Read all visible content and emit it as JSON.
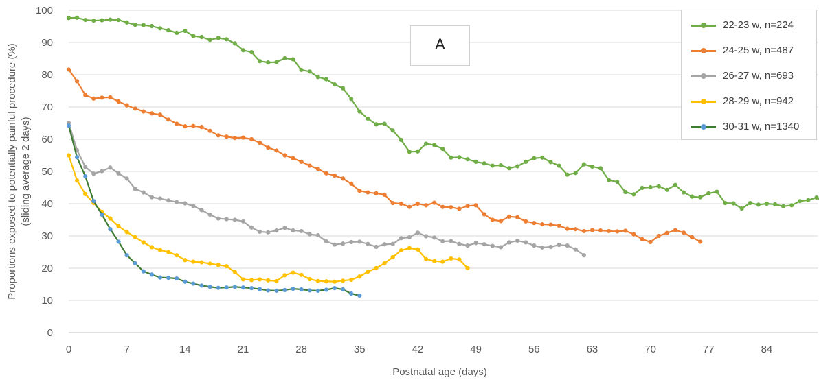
{
  "chart_data": {
    "type": "line",
    "title": "",
    "panel_label": "A",
    "xlabel": "Postnatal age (days)",
    "ylabel_line1": "Proportions exposed to potentially painful procedure (%)",
    "ylabel_line2": "(sliding average 2 days)",
    "xlim": [
      0,
      90
    ],
    "ylim": [
      0,
      100
    ],
    "x_ticks": [
      0,
      7,
      14,
      21,
      28,
      35,
      42,
      49,
      56,
      63,
      70,
      77,
      84
    ],
    "x_tick_labels": [
      "0",
      "7",
      "14",
      "21",
      "28",
      "35",
      "42",
      "49",
      "56",
      "63",
      "70",
      "77",
      "84"
    ],
    "y_ticks": [
      0,
      10,
      20,
      30,
      40,
      50,
      60,
      70,
      80,
      90,
      100
    ],
    "y_tick_labels": [
      "0",
      "10",
      "20",
      "30",
      "40",
      "50",
      "60",
      "70",
      "80",
      "90",
      "100"
    ],
    "grid": "horizontal",
    "legend_position": "top-right",
    "series": [
      {
        "name": "22-23 w, n=224",
        "color": "#70AD47",
        "values": [
          97.6,
          97.7,
          97.0,
          96.8,
          96.9,
          97.1,
          97.0,
          96.2,
          95.5,
          95.4,
          95.1,
          94.4,
          93.8,
          93.0,
          93.6,
          92.0,
          91.7,
          90.8,
          91.4,
          91.0,
          89.7,
          87.6,
          87.0,
          84.2,
          83.8,
          83.9,
          85.1,
          84.8,
          81.5,
          81.0,
          79.3,
          78.6,
          77.0,
          75.8,
          72.5,
          68.6,
          66.4,
          64.6,
          64.8,
          62.7,
          59.8,
          56.1,
          56.2,
          58.6,
          58.2,
          57.0,
          54.3,
          54.4,
          53.8,
          53.0,
          52.5,
          51.8,
          51.9,
          51.0,
          51.6,
          53.0,
          54.1,
          54.3,
          52.9,
          51.8,
          49.0,
          49.5,
          52.2,
          51.5,
          51.0,
          47.3,
          46.8,
          43.6,
          42.9,
          44.9,
          45.1,
          45.4,
          44.3,
          45.8,
          43.5,
          42.2,
          42.0,
          43.2,
          43.7,
          40.2,
          40.1,
          38.5,
          40.2,
          39.7,
          40.0,
          39.8,
          39.2,
          39.5,
          40.8,
          41.1,
          41.9,
          40.4
        ]
      },
      {
        "name": "24-25 w, n=487",
        "color": "#ED7D31",
        "values": [
          81.6,
          78.0,
          73.7,
          72.6,
          72.9,
          73.0,
          71.7,
          70.5,
          69.5,
          68.6,
          68.0,
          67.6,
          66.1,
          64.8,
          64.0,
          64.1,
          63.8,
          62.6,
          61.2,
          60.8,
          60.4,
          60.5,
          60.0,
          58.9,
          57.4,
          56.5,
          55.0,
          54.1,
          53.0,
          51.8,
          50.8,
          49.4,
          48.7,
          47.8,
          46.2,
          44.0,
          43.5,
          43.2,
          42.8,
          40.2,
          40.0,
          39.0,
          40.0,
          39.5,
          40.3,
          39.0,
          38.9,
          38.4,
          39.3,
          39.5,
          36.7,
          35.0,
          34.6,
          36.0,
          35.8,
          34.5,
          34.0,
          33.6,
          33.5,
          33.2,
          32.2,
          32.1,
          31.5,
          31.8,
          31.7,
          31.5,
          31.4,
          31.6,
          30.5,
          29.0,
          28.1,
          30.0,
          30.9,
          31.8,
          31.0,
          29.6,
          28.2
        ]
      },
      {
        "name": "26-27 w, n=693",
        "color": "#A5A5A5",
        "values": [
          65.0,
          56.6,
          51.4,
          49.3,
          50.1,
          51.2,
          49.4,
          47.8,
          44.6,
          43.5,
          42.0,
          41.6,
          41.0,
          40.5,
          40.1,
          39.3,
          38.0,
          36.6,
          35.4,
          35.2,
          35.0,
          34.5,
          32.6,
          31.3,
          31.1,
          31.7,
          32.5,
          31.7,
          31.5,
          30.5,
          30.2,
          28.3,
          27.3,
          27.6,
          28.1,
          28.2,
          27.5,
          26.6,
          27.4,
          27.5,
          29.3,
          29.6,
          31.0,
          29.9,
          29.5,
          28.3,
          28.4,
          27.5,
          27.0,
          27.8,
          27.4,
          26.9,
          26.5,
          28.0,
          28.5,
          28.0,
          27.0,
          26.4,
          26.6,
          27.2,
          27.0,
          25.8,
          24.0
        ]
      },
      {
        "name": "28-29 w, n=942",
        "color": "#FFC000",
        "values": [
          55.0,
          47.2,
          43.0,
          40.2,
          37.5,
          35.4,
          33.0,
          31.2,
          29.6,
          28.0,
          26.5,
          25.6,
          25.0,
          24.0,
          22.5,
          22.0,
          21.8,
          21.4,
          21.0,
          20.6,
          18.8,
          16.5,
          16.3,
          16.5,
          16.2,
          16.0,
          17.8,
          18.6,
          17.9,
          16.6,
          16.0,
          15.9,
          15.8,
          16.1,
          16.4,
          17.4,
          18.9,
          20.0,
          21.5,
          23.4,
          25.5,
          26.2,
          25.8,
          22.8,
          22.2,
          22.0,
          23.0,
          22.7,
          20.0
        ]
      },
      {
        "name": "30-31 w, n=1340",
        "color": "#5B9BD5",
        "line_color": "#3E7B33",
        "values": [
          64.2,
          54.4,
          48.5,
          40.8,
          36.6,
          32.1,
          28.2,
          24.0,
          21.5,
          19.0,
          18.0,
          17.1,
          17.0,
          16.8,
          15.8,
          15.2,
          14.6,
          14.2,
          13.9,
          14.0,
          14.2,
          14.0,
          13.8,
          13.5,
          13.1,
          13.0,
          13.2,
          13.6,
          13.4,
          13.1,
          13.0,
          13.3,
          13.8,
          13.4,
          12.1,
          11.5
        ]
      }
    ]
  }
}
